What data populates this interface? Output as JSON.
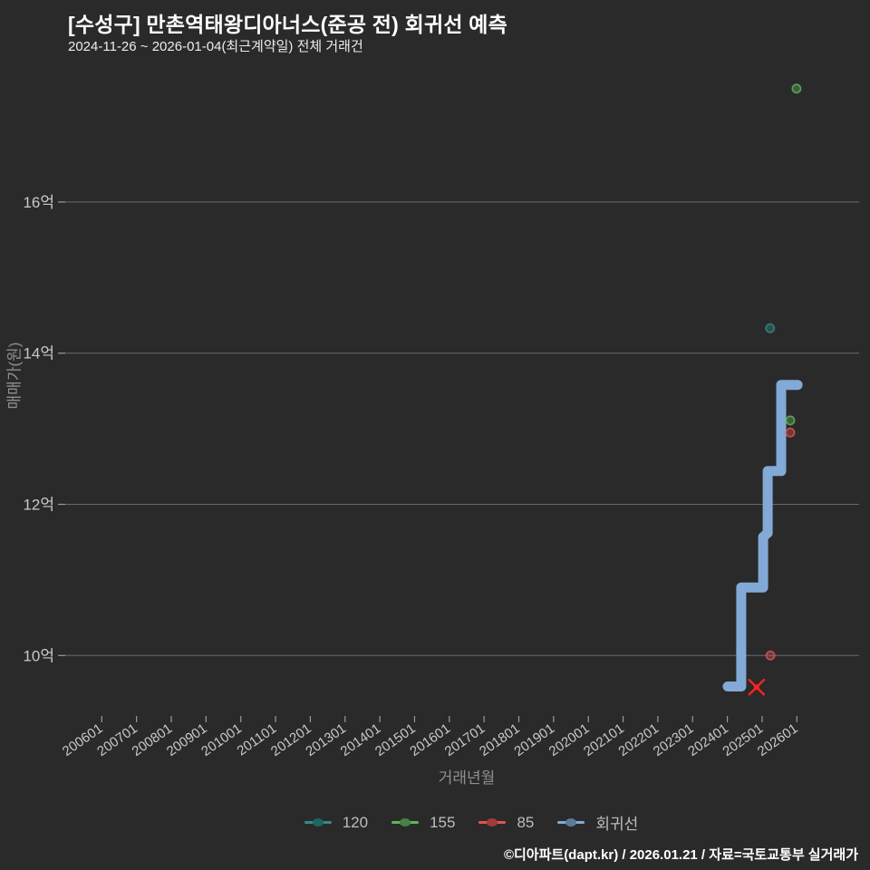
{
  "header": {
    "title": "[수성구] 만촌역태왕디아너스(준공 전) 회귀선 예측",
    "subtitle": "2024-11-26 ~ 2026-01-04(최근계약일) 전체 거래건"
  },
  "footer": {
    "credit": "©디아파트(dapt.kr) / 2026.01.21 / 자료=국토교통부 실거래가"
  },
  "colors": {
    "background": "#2a2a2b",
    "grid": "#6a6a6a",
    "tick": "#9a9a9a",
    "tick_label": "#c9c9c9",
    "axis_title": "#8f8f8f",
    "series_120": "#2f8c8a",
    "series_155": "#5fb65a",
    "series_85": "#e05353",
    "regression": "#83aad6",
    "marker_x": "#ff2222"
  },
  "chart_data": {
    "type": "scatter",
    "title": "[수성구] 만촌역태왕디아너스(준공 전) 회귀선 예측",
    "subtitle": "2024-11-26 ~ 2026-01-04(최근계약일) 전체 거래건",
    "xlabel": "거래년월",
    "ylabel": "매매가(원)",
    "x_ticks": [
      "200601",
      "200701",
      "200801",
      "200901",
      "201001",
      "201101",
      "201201",
      "201301",
      "201401",
      "201501",
      "201601",
      "201701",
      "201801",
      "201901",
      "202001",
      "202101",
      "202201",
      "202301",
      "202401",
      "202501",
      "202601"
    ],
    "y_ticks": [
      {
        "label": "10억",
        "value": 10
      },
      {
        "label": "12억",
        "value": 12
      },
      {
        "label": "14억",
        "value": 14
      },
      {
        "label": "16억",
        "value": 16
      }
    ],
    "xlim": [
      2003.1,
      2028.1
    ],
    "ylim_eok": [
      7.4,
      18.7
    ],
    "grid": true,
    "legend_position": "bottom-center",
    "unit_note": "values in 억원 (eok = 100M KRW), x in year fraction of contract month",
    "series": [
      {
        "name": "120",
        "color_key": "series_120",
        "points": [
          {
            "x": 2025.23,
            "y": 14.33
          }
        ]
      },
      {
        "name": "155",
        "color_key": "series_155",
        "points": [
          {
            "x": 2025.81,
            "y": 13.11
          },
          {
            "x": 2025.99,
            "y": 17.5
          }
        ]
      },
      {
        "name": "85",
        "color_key": "series_85",
        "points": [
          {
            "x": 2025.24,
            "y": 10.0
          },
          {
            "x": 2025.81,
            "y": 12.95
          }
        ]
      }
    ],
    "regression_line": {
      "name": "회귀선",
      "color_key": "regression",
      "vertices": [
        [
          2024.01,
          9.59
        ],
        [
          2024.4,
          9.59
        ],
        [
          2024.4,
          10.9
        ],
        [
          2025.03,
          10.9
        ],
        [
          2025.03,
          11.57
        ],
        [
          2025.16,
          11.62
        ],
        [
          2025.16,
          12.44
        ],
        [
          2025.55,
          12.44
        ],
        [
          2025.55,
          13.58
        ],
        [
          2026.02,
          13.58
        ]
      ]
    },
    "annotations": [
      {
        "type": "x-marker",
        "label": "latest-contract",
        "x": 2024.84,
        "y": 9.58,
        "color_key": "marker_x"
      }
    ],
    "legend": [
      {
        "label": "120",
        "color_key": "series_120"
      },
      {
        "label": "155",
        "color_key": "series_155"
      },
      {
        "label": "85",
        "color_key": "series_85"
      },
      {
        "label": "회귀선",
        "color_key": "regression"
      }
    ]
  }
}
